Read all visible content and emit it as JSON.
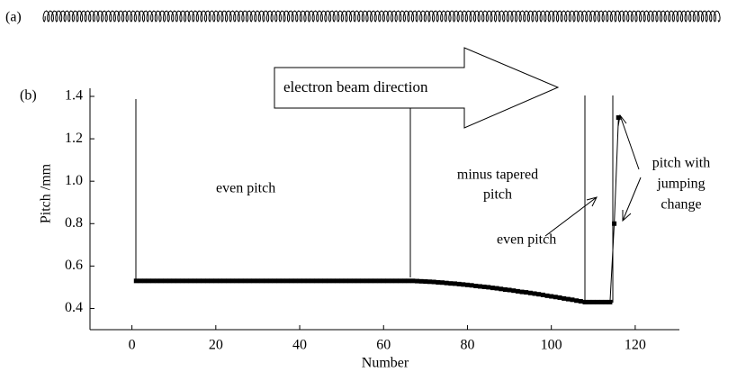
{
  "chart_data": {
    "type": "line",
    "panel_labels": [
      "(a)",
      "(b)"
    ],
    "xlabel": "Number",
    "ylabel": "Pitch /mm",
    "annotations": {
      "beam": "electron beam direction",
      "even1": "even pitch",
      "tapered": [
        "minus tapered",
        "pitch"
      ],
      "even2": "even pitch",
      "jump": [
        "pitch with",
        "jumping",
        "change"
      ]
    },
    "xlim": [
      -10,
      130
    ],
    "xticks": [
      0,
      20,
      40,
      60,
      80,
      100,
      120
    ],
    "ylim": [
      0.3,
      1.4
    ],
    "yticks": [
      0.4,
      0.6,
      0.8,
      {
        "value": 1,
        "label": "1.0"
      },
      1.2,
      1.4
    ],
    "x": [
      1,
      2,
      3,
      4,
      5,
      6,
      7,
      8,
      9,
      10,
      11,
      12,
      13,
      14,
      15,
      16,
      17,
      18,
      19,
      20,
      21,
      22,
      23,
      24,
      25,
      26,
      27,
      28,
      29,
      30,
      31,
      32,
      33,
      34,
      35,
      36,
      37,
      38,
      39,
      40,
      41,
      42,
      43,
      44,
      45,
      46,
      47,
      48,
      49,
      50,
      51,
      52,
      53,
      54,
      55,
      56,
      57,
      58,
      59,
      60,
      61,
      62,
      63,
      64,
      65,
      66,
      67,
      68,
      69,
      70,
      71,
      72,
      73,
      74,
      75,
      76,
      77,
      78,
      79,
      80,
      81,
      82,
      83,
      84,
      85,
      86,
      87,
      88,
      89,
      90,
      91,
      92,
      93,
      94,
      95,
      96,
      97,
      98,
      99,
      100,
      101,
      102,
      103,
      104,
      105,
      106,
      107,
      108,
      109,
      110,
      111,
      112,
      113,
      114,
      115,
      116
    ],
    "series": [
      {
        "color": "#000000",
        "values": [
          0.53,
          0.53,
          0.53,
          0.53,
          0.53,
          0.53,
          0.53,
          0.53,
          0.53,
          0.53,
          0.53,
          0.53,
          0.53,
          0.53,
          0.53,
          0.53,
          0.53,
          0.53,
          0.53,
          0.53,
          0.53,
          0.53,
          0.53,
          0.53,
          0.53,
          0.53,
          0.53,
          0.53,
          0.53,
          0.53,
          0.53,
          0.53,
          0.53,
          0.53,
          0.53,
          0.53,
          0.53,
          0.53,
          0.53,
          0.53,
          0.53,
          0.53,
          0.53,
          0.53,
          0.53,
          0.53,
          0.53,
          0.53,
          0.53,
          0.53,
          0.53,
          0.53,
          0.53,
          0.53,
          0.53,
          0.53,
          0.53,
          0.53,
          0.53,
          0.53,
          0.53,
          0.53,
          0.53,
          0.53,
          0.53,
          0.53,
          0.53,
          0.529,
          0.528,
          0.527,
          0.526,
          0.525,
          0.523,
          0.522,
          0.52,
          0.518,
          0.517,
          0.515,
          0.513,
          0.511,
          0.509,
          0.506,
          0.504,
          0.502,
          0.5,
          0.497,
          0.495,
          0.492,
          0.489,
          0.487,
          0.484,
          0.481,
          0.478,
          0.476,
          0.473,
          0.47,
          0.467,
          0.464,
          0.46,
          0.457,
          0.454,
          0.451,
          0.447,
          0.444,
          0.441,
          0.437,
          0.434,
          0.43,
          0.43,
          0.43,
          0.43,
          0.43,
          0.43,
          0.43,
          0.8,
          1.3
        ]
      }
    ]
  }
}
